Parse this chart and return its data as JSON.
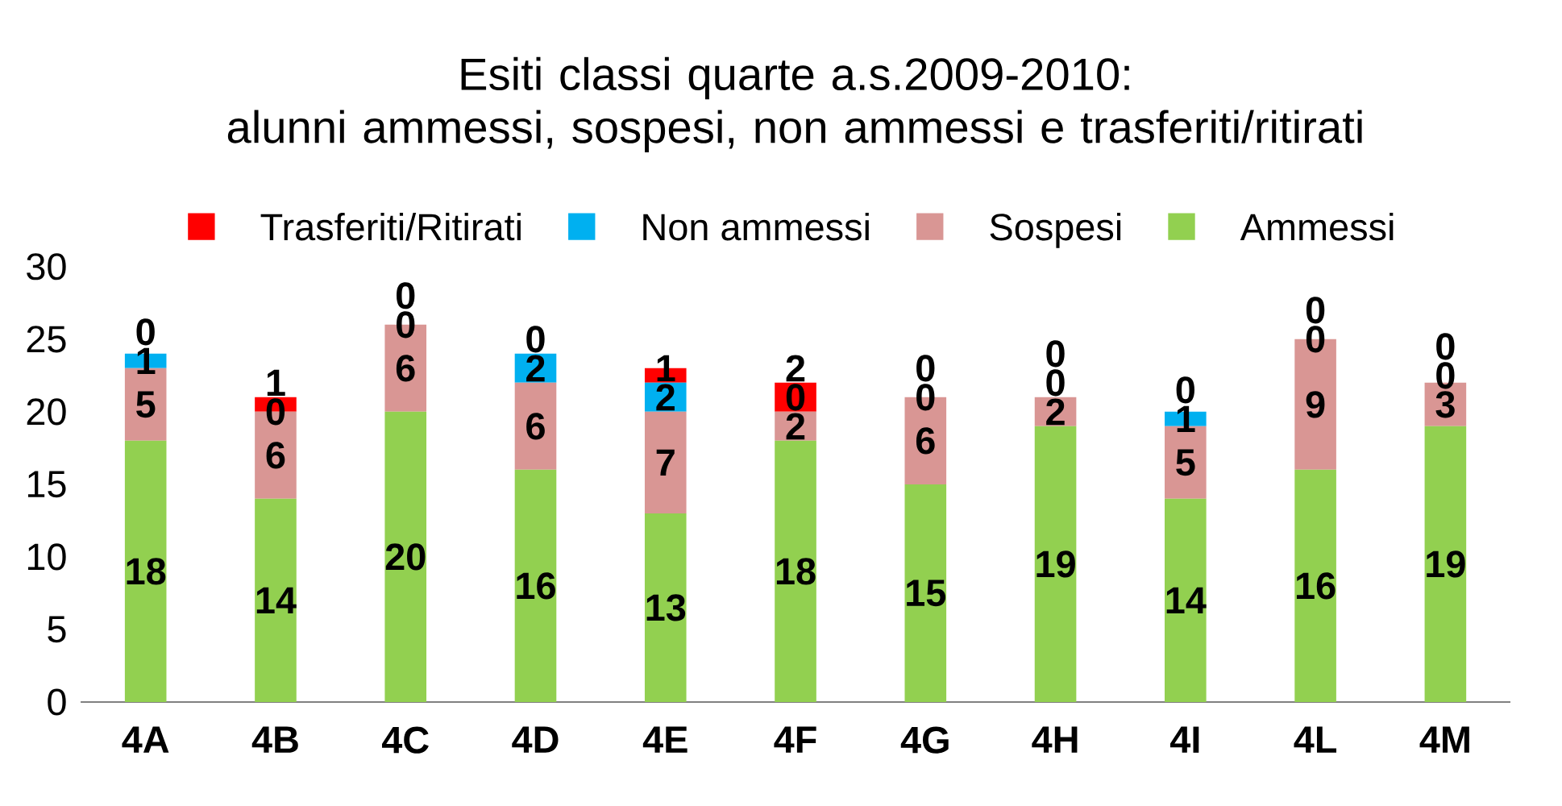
{
  "chart_data": {
    "type": "bar",
    "stacked": true,
    "title": "Esiti classi quarte a.s.2009-2010:\nalunni ammessi, sospesi, non ammessi e trasferiti/ritirati",
    "categories": [
      "4A",
      "4B",
      "4C",
      "4D",
      "4E",
      "4F",
      "4G",
      "4H",
      "4I",
      "4L",
      "4M"
    ],
    "series": [
      {
        "name": "Ammessi",
        "color": "#92d050",
        "values": [
          18,
          14,
          20,
          16,
          13,
          18,
          15,
          19,
          14,
          16,
          19
        ]
      },
      {
        "name": "Sospesi",
        "color": "#d99694",
        "values": [
          5,
          6,
          6,
          6,
          7,
          2,
          6,
          2,
          5,
          9,
          3
        ]
      },
      {
        "name": "Non ammessi",
        "color": "#00b0f0",
        "values": [
          1,
          0,
          0,
          2,
          2,
          0,
          0,
          0,
          1,
          0,
          0
        ]
      },
      {
        "name": "Trasferiti/Ritirati",
        "color": "#ff0000",
        "values": [
          0,
          1,
          0,
          0,
          1,
          2,
          0,
          0,
          0,
          0,
          0
        ]
      }
    ],
    "ylim": [
      0,
      30
    ],
    "yticks": [
      0,
      5,
      10,
      15,
      20,
      25,
      30
    ],
    "grid": false,
    "legend": "top",
    "data_labels": true
  }
}
